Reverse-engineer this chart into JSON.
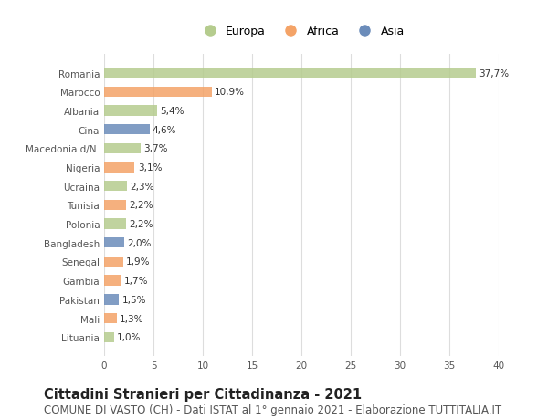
{
  "countries": [
    "Lituania",
    "Mali",
    "Pakistan",
    "Gambia",
    "Senegal",
    "Bangladesh",
    "Polonia",
    "Tunisia",
    "Ucraina",
    "Nigeria",
    "Macedonia d/N.",
    "Cina",
    "Albania",
    "Marocco",
    "Romania"
  ],
  "values": [
    1.0,
    1.3,
    1.5,
    1.7,
    1.9,
    2.0,
    2.2,
    2.2,
    2.3,
    3.1,
    3.7,
    4.6,
    5.4,
    10.9,
    37.7
  ],
  "continents": [
    "Europa",
    "Africa",
    "Asia",
    "Africa",
    "Africa",
    "Asia",
    "Europa",
    "Africa",
    "Europa",
    "Africa",
    "Europa",
    "Asia",
    "Europa",
    "Africa",
    "Europa"
  ],
  "colors": {
    "Europa": "#b5cc8e",
    "Africa": "#f4a367",
    "Asia": "#6b8cba"
  },
  "bar_height": 0.55,
  "xlim": [
    0,
    40
  ],
  "xticks": [
    0,
    5,
    10,
    15,
    20,
    25,
    30,
    35,
    40
  ],
  "title": "Cittadini Stranieri per Cittadinanza - 2021",
  "subtitle": "COMUNE DI VASTO (CH) - Dati ISTAT al 1° gennaio 2021 - Elaborazione TUTTITALIA.IT",
  "title_fontsize": 10.5,
  "subtitle_fontsize": 8.5,
  "legend_labels": [
    "Europa",
    "Africa",
    "Asia"
  ],
  "legend_colors": [
    "#b5cc8e",
    "#f4a367",
    "#6b8cba"
  ],
  "grid_color": "#dddddd",
  "background_color": "#ffffff",
  "label_fontsize": 7.5,
  "tick_fontsize": 7.5,
  "axis_label_color": "#555555"
}
